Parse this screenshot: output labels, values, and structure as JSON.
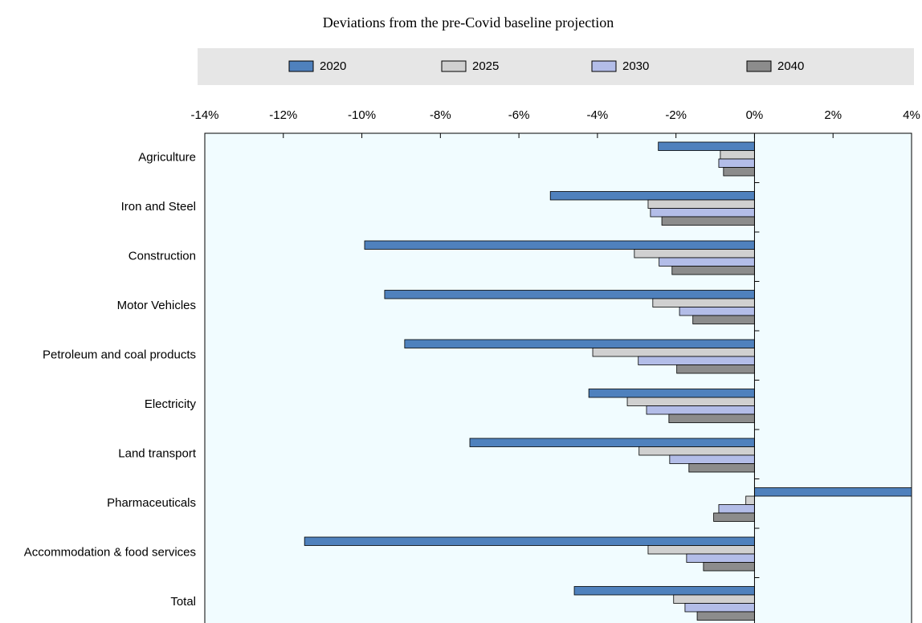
{
  "chart_data": {
    "type": "hbar",
    "title": "Deviations from the pre-Covid baseline projection",
    "categories": [
      "Agriculture",
      "Iron and Steel",
      "Construction",
      "Motor Vehicles",
      "Petroleum and coal products",
      "Electricity",
      "Land transport",
      "Pharmaceuticals",
      "Accommodation & food services",
      "Total"
    ],
    "series": [
      {
        "name": "2020",
        "color": "#4f81bd",
        "values": [
          -2.45,
          -5.2,
          -9.93,
          -9.42,
          -8.91,
          -4.22,
          -7.25,
          4.0,
          -11.46,
          -4.59
        ]
      },
      {
        "name": "2025",
        "color": "#d0d0d0",
        "values": [
          -0.87,
          -2.71,
          -3.06,
          -2.59,
          -4.12,
          -3.24,
          -2.94,
          -0.22,
          -2.71,
          -2.06
        ]
      },
      {
        "name": "2030",
        "color": "#b3bde8",
        "values": [
          -0.91,
          -2.65,
          -2.43,
          -1.91,
          -2.96,
          -2.75,
          -2.16,
          -0.91,
          -1.73,
          -1.77
        ]
      },
      {
        "name": "2040",
        "color": "#8c8c8c",
        "values": [
          -0.79,
          -2.36,
          -2.1,
          -1.57,
          -1.98,
          -2.18,
          -1.67,
          -1.04,
          -1.3,
          -1.46
        ]
      }
    ],
    "xlim": [
      -14,
      4
    ],
    "xticks": [
      {
        "value": -14,
        "label": "-14%"
      },
      {
        "value": -12,
        "label": "-12%"
      },
      {
        "value": -10,
        "label": "-10%"
      },
      {
        "value": -8,
        "label": "-8%"
      },
      {
        "value": -6,
        "label": "-6%"
      },
      {
        "value": -4,
        "label": "-4%"
      },
      {
        "value": -2,
        "label": "-2%"
      },
      {
        "value": 0,
        "label": "0%"
      },
      {
        "value": 2,
        "label": "2%"
      },
      {
        "value": 4,
        "label": "4%"
      }
    ]
  }
}
